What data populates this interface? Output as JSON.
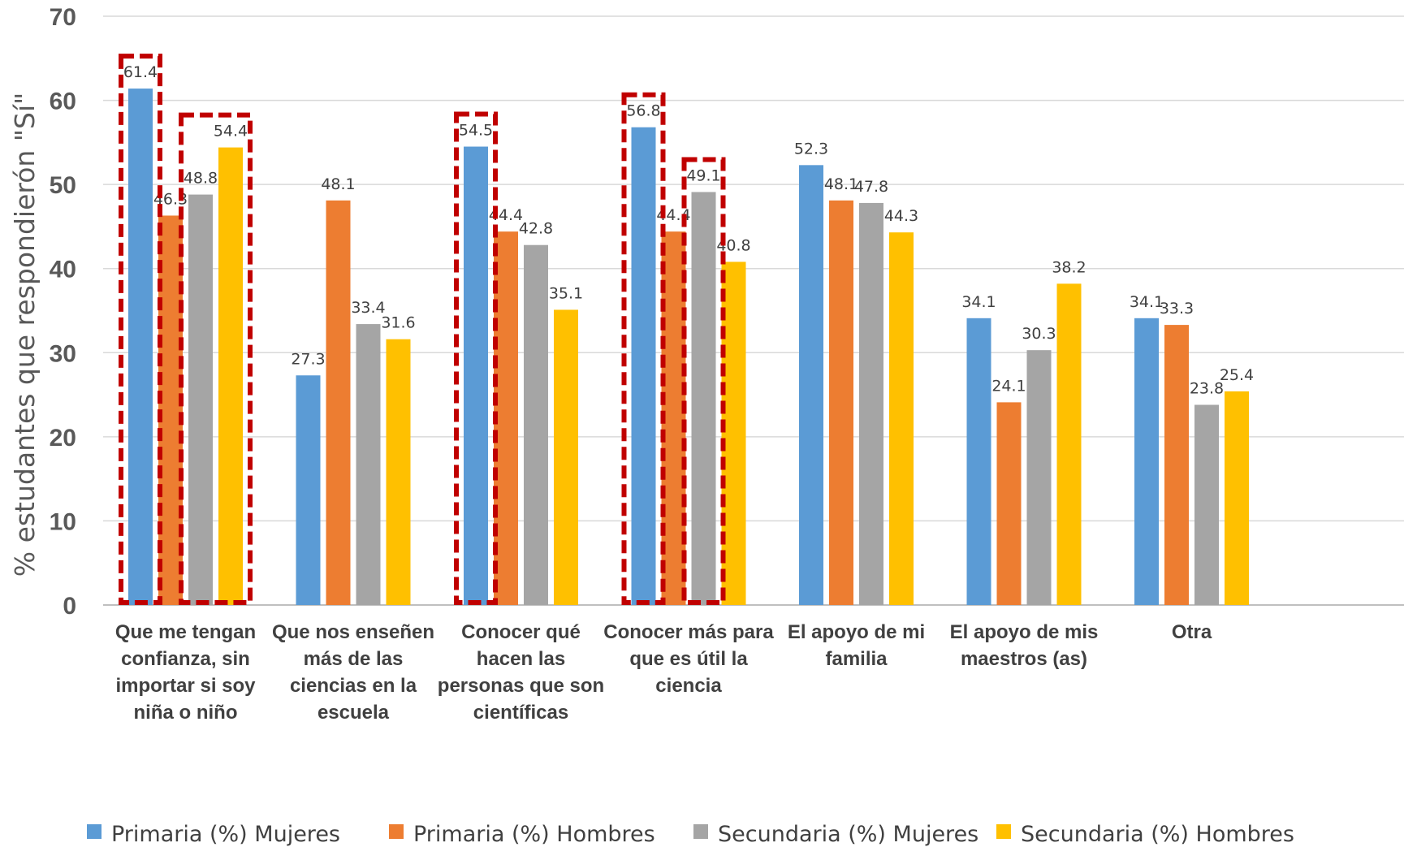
{
  "chart_data": {
    "type": "bar",
    "title": "",
    "xlabel": "",
    "ylabel": "% estudantes que respondierón \"Sí\"",
    "ylim": [
      0,
      70
    ],
    "yticks": [
      0,
      10,
      20,
      30,
      40,
      50,
      60,
      70
    ],
    "grid": true,
    "legend_position": "bottom",
    "categories": [
      [
        "Que me tengan",
        "confianza, sin",
        "importar si soy",
        "niña o niño"
      ],
      [
        "Que nos enseñen",
        "más de las",
        "ciencias en la",
        "escuela"
      ],
      [
        "Conocer qué",
        "hacen las",
        "personas que son",
        "científicas"
      ],
      [
        "Conocer más para",
        "que es útil la",
        "ciencia"
      ],
      [
        "El apoyo de mi",
        "familia"
      ],
      [
        "El apoyo de mis",
        "maestros (as)"
      ],
      [
        "Otra"
      ]
    ],
    "series": [
      {
        "name": "Primaria (%) Mujeres",
        "color": "#5b9bd5",
        "values": [
          61.4,
          27.3,
          54.5,
          56.8,
          52.3,
          34.1,
          34.1
        ]
      },
      {
        "name": "Primaria (%) Hombres",
        "color": "#ed7d31",
        "values": [
          46.3,
          48.1,
          44.4,
          44.4,
          48.1,
          24.1,
          33.3
        ]
      },
      {
        "name": "Secundaria (%) Mujeres",
        "color": "#a5a5a5",
        "values": [
          48.8,
          33.4,
          42.8,
          49.1,
          47.8,
          30.3,
          23.8
        ]
      },
      {
        "name": "Secundaria (%) Hombres",
        "color": "#ffc000",
        "values": [
          54.4,
          31.6,
          35.1,
          40.8,
          44.3,
          38.2,
          25.4
        ]
      }
    ],
    "highlights": [
      {
        "category": 0,
        "series": [
          0
        ],
        "color": "#c00000",
        "style": "dashed"
      },
      {
        "category": 0,
        "series": [
          2,
          3
        ],
        "color": "#c00000",
        "style": "dashed"
      },
      {
        "category": 2,
        "series": [
          0
        ],
        "color": "#c00000",
        "style": "dashed"
      },
      {
        "category": 3,
        "series": [
          0
        ],
        "color": "#c00000",
        "style": "dashed"
      },
      {
        "category": 3,
        "series": [
          2
        ],
        "color": "#c00000",
        "style": "dashed"
      }
    ]
  }
}
